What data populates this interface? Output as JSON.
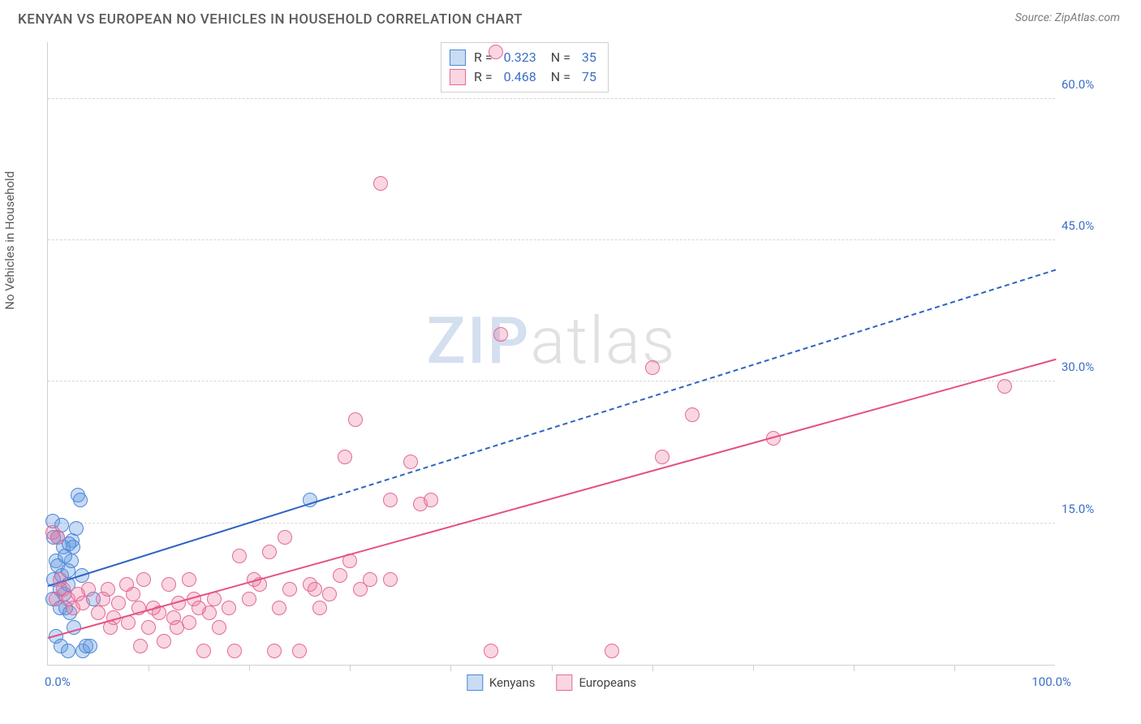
{
  "header": {
    "title": "KENYAN VS EUROPEAN NO VEHICLES IN HOUSEHOLD CORRELATION CHART",
    "source_prefix": "Source: ",
    "source_name": "ZipAtlas.com"
  },
  "y_axis_label": "No Vehicles in Household",
  "watermark": {
    "part1": "ZIP",
    "part2": "atlas"
  },
  "chart": {
    "type": "scatter",
    "background_color": "#ffffff",
    "grid_color": "#d8d8d8",
    "axis_color": "#cfcfcf",
    "label_color": "#3b6fc7",
    "xlim": [
      0,
      100
    ],
    "ylim": [
      0,
      66
    ],
    "x_ticks_minor": [
      10,
      20,
      30,
      40,
      50,
      60,
      70,
      80,
      90
    ],
    "x_tick_labels": {
      "left": "0.0%",
      "right": "100.0%"
    },
    "y_ticks": [
      {
        "value": 15,
        "label": "15.0%"
      },
      {
        "value": 30,
        "label": "30.0%"
      },
      {
        "value": 45,
        "label": "45.0%"
      },
      {
        "value": 60,
        "label": "60.0%"
      }
    ],
    "marker_radius": 9,
    "marker_border_width": 1.2,
    "series": [
      {
        "key": "kenyans",
        "label": "Kenyans",
        "fill": "rgba(96,155,224,0.35)",
        "stroke": "#4f86d8",
        "trend_color": "#2e63c2",
        "trend": {
          "x1": 0,
          "y1": 8.5,
          "x2": 100,
          "y2": 42,
          "solid_until_x": 28
        },
        "stats": {
          "R": "0.323",
          "N": "35"
        },
        "points": [
          [
            0.5,
            7
          ],
          [
            0.6,
            9
          ],
          [
            0.8,
            11
          ],
          [
            1,
            13.5
          ],
          [
            1,
            10.5
          ],
          [
            1.2,
            8
          ],
          [
            1.2,
            6
          ],
          [
            1.4,
            9.5
          ],
          [
            1.5,
            12.5
          ],
          [
            1.6,
            7.5
          ],
          [
            1.8,
            6
          ],
          [
            2,
            10
          ],
          [
            2,
            8.5
          ],
          [
            2.2,
            5.5
          ],
          [
            2.3,
            11
          ],
          [
            2.4,
            13.2
          ],
          [
            2.5,
            12.5
          ],
          [
            2.6,
            4
          ],
          [
            2.8,
            14.5
          ],
          [
            3,
            18
          ],
          [
            3.2,
            17.5
          ],
          [
            0.8,
            3
          ],
          [
            1.3,
            2
          ],
          [
            2,
            1.5
          ],
          [
            3.5,
            1.5
          ],
          [
            0.5,
            15.2
          ],
          [
            0.6,
            13.5
          ],
          [
            1.4,
            14.8
          ],
          [
            3.4,
            9.5
          ],
          [
            1.7,
            11.5
          ],
          [
            4.5,
            7
          ],
          [
            2.1,
            12.8
          ],
          [
            3.8,
            2
          ],
          [
            4.2,
            2
          ],
          [
            26,
            17.5
          ]
        ]
      },
      {
        "key": "europeans",
        "label": "Europeans",
        "fill": "rgba(236,120,160,0.30)",
        "stroke": "#e46a95",
        "trend_color": "#e5517f",
        "trend": {
          "x1": 0,
          "y1": 3,
          "x2": 100,
          "y2": 32.5,
          "solid_until_x": 100
        },
        "stats": {
          "R": "0.468",
          "N": "75"
        },
        "points": [
          [
            0.5,
            14
          ],
          [
            1,
            13.5
          ],
          [
            0.8,
            7
          ],
          [
            1.2,
            9
          ],
          [
            1.5,
            8
          ],
          [
            2,
            7
          ],
          [
            2.5,
            6
          ],
          [
            3,
            7.5
          ],
          [
            3.5,
            6.5
          ],
          [
            4,
            8
          ],
          [
            5,
            5.5
          ],
          [
            5.5,
            7
          ],
          [
            6,
            8
          ],
          [
            6.5,
            5
          ],
          [
            7,
            6.5
          ],
          [
            8,
            4.5
          ],
          [
            8.5,
            7.5
          ],
          [
            9,
            6
          ],
          [
            9.5,
            9
          ],
          [
            10,
            4
          ],
          [
            11,
            5.5
          ],
          [
            12,
            8.5
          ],
          [
            12.5,
            5
          ],
          [
            13,
            6.5
          ],
          [
            14,
            4.5
          ],
          [
            14.5,
            7
          ],
          [
            15,
            6
          ],
          [
            15.5,
            1.5
          ],
          [
            16,
            5.5
          ],
          [
            17,
            4
          ],
          [
            18,
            6
          ],
          [
            18.5,
            1.5
          ],
          [
            19,
            11.5
          ],
          [
            20,
            7
          ],
          [
            21,
            8.5
          ],
          [
            22,
            12
          ],
          [
            22.5,
            1.5
          ],
          [
            23,
            6
          ],
          [
            23.5,
            13.5
          ],
          [
            24,
            8
          ],
          [
            25,
            1.5
          ],
          [
            26,
            8.5
          ],
          [
            27,
            6
          ],
          [
            28,
            7.5
          ],
          [
            29,
            9.5
          ],
          [
            29.5,
            22
          ],
          [
            30,
            11
          ],
          [
            30.5,
            26
          ],
          [
            31,
            8
          ],
          [
            32,
            9
          ],
          [
            33,
            51
          ],
          [
            34,
            17.5
          ],
          [
            36,
            21.5
          ],
          [
            37,
            17
          ],
          [
            38,
            17.5
          ],
          [
            44,
            1.5
          ],
          [
            45,
            35
          ],
          [
            44.5,
            65
          ],
          [
            56,
            1.5
          ],
          [
            60,
            31.5
          ],
          [
            61,
            22
          ],
          [
            64,
            26.5
          ],
          [
            72,
            24
          ],
          [
            95,
            29.5
          ],
          [
            34,
            9
          ],
          [
            20.5,
            9
          ],
          [
            10.5,
            6
          ],
          [
            12.8,
            4
          ],
          [
            6.2,
            4
          ],
          [
            7.8,
            8.5
          ],
          [
            16.5,
            7
          ],
          [
            26.5,
            8
          ],
          [
            14,
            9
          ],
          [
            9.2,
            2
          ],
          [
            11.5,
            2.5
          ]
        ]
      }
    ],
    "stats_box": {
      "left_pct": 39,
      "top_pct": 0
    },
    "legend_labels": {
      "kenyans": "Kenyans",
      "europeans": "Europeans"
    }
  }
}
